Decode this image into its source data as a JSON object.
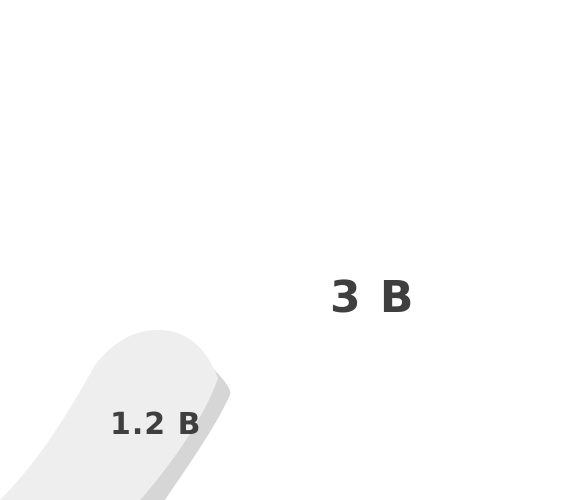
{
  "labels": {
    "large_value": "3 B",
    "small_value": "1.2 B"
  },
  "colors": {
    "text": "#3f3f3f",
    "shape_fill": "#eeeeee",
    "shape_shadow": "#d6d6d6",
    "background": "#ffffff"
  }
}
